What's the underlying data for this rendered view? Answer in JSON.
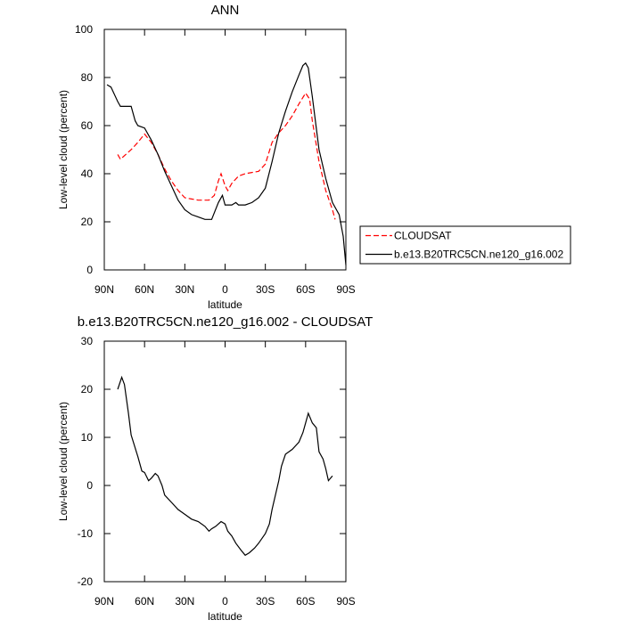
{
  "chart_data": [
    {
      "type": "line",
      "title": "ANN",
      "x_label": "latitude",
      "y_label": "Low-level cloud (percent)",
      "xlim": [
        90,
        -90
      ],
      "ylim": [
        0,
        100
      ],
      "xticks": [
        {
          "value": 90,
          "label": "90N"
        },
        {
          "value": 60,
          "label": "60N"
        },
        {
          "value": 30,
          "label": "30N"
        },
        0,
        {
          "value": -30,
          "label": "30S"
        },
        {
          "value": -60,
          "label": "60S"
        },
        {
          "value": -90,
          "label": "90S"
        }
      ],
      "yticks": [
        0,
        20,
        40,
        60,
        80,
        100
      ],
      "legend": "right",
      "series": [
        {
          "name": "CLOUDSAT",
          "color": "#ff0000",
          "line_style": "dashed",
          "x": [
            80,
            78,
            70,
            65,
            60,
            55,
            50,
            45,
            40,
            35,
            30,
            25,
            20,
            15,
            12,
            8,
            5,
            3,
            0,
            -2,
            -5,
            -10,
            -15,
            -20,
            -25,
            -30,
            -35,
            -40,
            -45,
            -50,
            -55,
            -60,
            -63,
            -65,
            -70,
            -75,
            -80,
            -82
          ],
          "values": [
            48,
            46,
            50,
            53,
            56.5,
            53,
            48,
            42,
            37,
            33,
            30,
            29.5,
            29,
            29,
            29,
            31,
            37,
            40,
            35,
            33,
            36,
            39,
            40,
            40.5,
            41,
            44,
            53,
            57,
            60,
            64,
            69,
            73.5,
            71,
            62,
            45,
            33,
            25,
            21
          ]
        },
        {
          "name": "b.e13.B20TRC5CN.ne120_g16.002",
          "color": "#000000",
          "line_style": "solid",
          "x": [
            88,
            85,
            80,
            78,
            75,
            70,
            67,
            65,
            60,
            55,
            50,
            45,
            40,
            35,
            30,
            25,
            20,
            15,
            10,
            5,
            2,
            0,
            -5,
            -8,
            -10,
            -15,
            -20,
            -25,
            -30,
            -35,
            -40,
            -45,
            -50,
            -55,
            -58,
            -60,
            -62,
            -65,
            -70,
            -75,
            -80,
            -85,
            -88,
            -90
          ],
          "values": [
            77,
            76,
            70,
            68,
            68,
            68,
            62,
            60,
            59,
            54,
            48,
            41,
            35,
            29,
            25,
            23,
            22,
            21,
            21,
            28,
            31,
            27,
            27,
            28,
            27,
            27,
            28,
            30,
            34,
            45,
            57,
            66,
            74,
            81,
            85,
            86,
            84,
            72,
            50,
            38,
            28,
            23,
            14,
            2
          ]
        }
      ]
    },
    {
      "type": "line",
      "title": "b.e13.B20TRC5CN.ne120_g16.002 - CLOUDSAT",
      "x_label": "latitude",
      "y_label": "Low-level cloud (percent)",
      "xlim": [
        90,
        -90
      ],
      "ylim": [
        -20,
        30
      ],
      "xticks": [
        {
          "value": 90,
          "label": "90N"
        },
        {
          "value": 60,
          "label": "60N"
        },
        {
          "value": 30,
          "label": "30N"
        },
        0,
        {
          "value": -30,
          "label": "30S"
        },
        {
          "value": -60,
          "label": "60S"
        },
        {
          "value": -90,
          "label": "90S"
        }
      ],
      "yticks": [
        -20,
        -10,
        0,
        10,
        20,
        30
      ],
      "color": "#000000",
      "x": [
        80,
        77,
        75,
        72,
        70,
        65,
        62,
        60,
        57,
        55,
        52,
        50,
        47,
        45,
        40,
        35,
        30,
        25,
        20,
        15,
        12,
        10,
        7,
        3,
        0,
        -2,
        -5,
        -8,
        -12,
        -15,
        -18,
        -22,
        -25,
        -30,
        -33,
        -35,
        -40,
        -42,
        -45,
        -50,
        -55,
        -58,
        -60,
        -62,
        -65,
        -68,
        -70,
        -73,
        -75,
        -77,
        -80
      ],
      "values": [
        20,
        22.5,
        21,
        15,
        10.5,
        6,
        3,
        2.7,
        1,
        1.5,
        2.5,
        2,
        0,
        -2,
        -3.5,
        -5,
        -6,
        -7,
        -7.5,
        -8.5,
        -9.5,
        -9,
        -8.5,
        -7.5,
        -8,
        -9.5,
        -10.5,
        -12,
        -13.5,
        -14.5,
        -14,
        -13,
        -12,
        -10,
        -8,
        -5,
        1,
        4,
        6.5,
        7.5,
        9,
        11,
        13,
        15,
        13,
        12,
        7,
        5.5,
        3.5,
        1,
        2
      ]
    }
  ]
}
